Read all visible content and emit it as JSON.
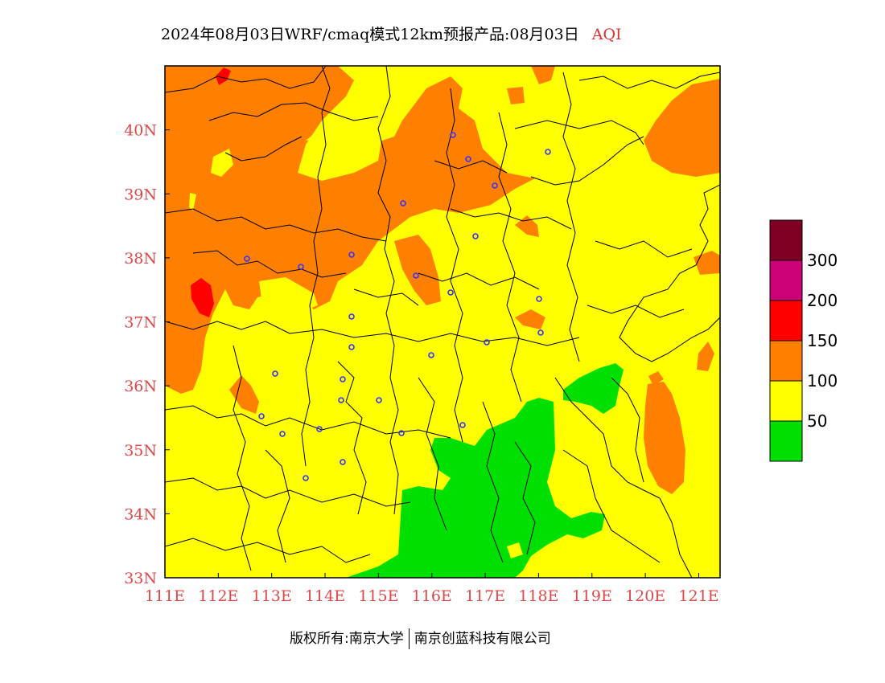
{
  "header": {
    "title": "2024年08月03日WRF/cmaq模式12km预报产品:08月03日",
    "product": "AQI"
  },
  "map": {
    "lon_range": [
      111,
      121.4
    ],
    "lat_range": [
      33,
      41
    ],
    "x_ticks": [
      "111E",
      "112E",
      "113E",
      "114E",
      "115E",
      "116E",
      "117E",
      "118E",
      "119E",
      "120E",
      "121E"
    ],
    "y_ticks": [
      "33N",
      "34N",
      "35N",
      "36N",
      "37N",
      "38N",
      "39N",
      "40N"
    ],
    "colors": {
      "good": "#00e000",
      "moderate": "#ffff00",
      "usg": "#ff7f00",
      "unhealthy": "#ff0000",
      "very_unhealthy": "#cc0077",
      "hazardous": "#7e0023",
      "station_marker": "#3333ff"
    }
  },
  "legend": {
    "colors": [
      "#7e0023",
      "#cc0077",
      "#ff0000",
      "#ff7f00",
      "#ffff00",
      "#00e000"
    ],
    "labels": [
      "300",
      "200",
      "150",
      "100",
      "50"
    ]
  },
  "footer": {
    "left": "版权所有:南京大学",
    "right": "南京创蓝科技有限公司"
  }
}
